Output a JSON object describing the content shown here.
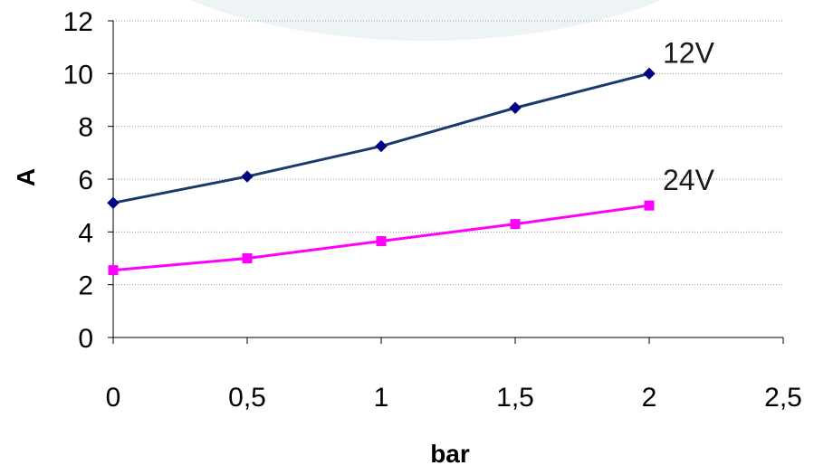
{
  "chart_data": {
    "type": "line",
    "xlabel": "bar",
    "ylabel": "A",
    "xlim": [
      0,
      2.5
    ],
    "ylim": [
      0,
      12
    ],
    "x_ticks": [
      0,
      0.5,
      1,
      1.5,
      2,
      2.5
    ],
    "x_tick_labels": [
      "0",
      "0,5",
      "1",
      "1,5",
      "2",
      "2,5"
    ],
    "y_ticks": [
      0,
      2,
      4,
      6,
      8,
      10,
      12
    ],
    "y_tick_labels": [
      "0",
      "2",
      "4",
      "6",
      "8",
      "10",
      "12"
    ],
    "grid": "horizontal dotted",
    "series": [
      {
        "name": "12V",
        "color": "#1b3a6b",
        "marker": "diamond",
        "marker_color": "#000080",
        "x": [
          0,
          0.5,
          1,
          1.5,
          2
        ],
        "values": [
          5.1,
          6.1,
          7.25,
          8.7,
          10.0
        ]
      },
      {
        "name": "24V",
        "color": "#ff00ff",
        "marker": "square",
        "marker_color": "#ff00ff",
        "x": [
          0,
          0.5,
          1,
          1.5,
          2
        ],
        "values": [
          2.55,
          3.0,
          3.65,
          4.3,
          5.0
        ]
      }
    ]
  }
}
